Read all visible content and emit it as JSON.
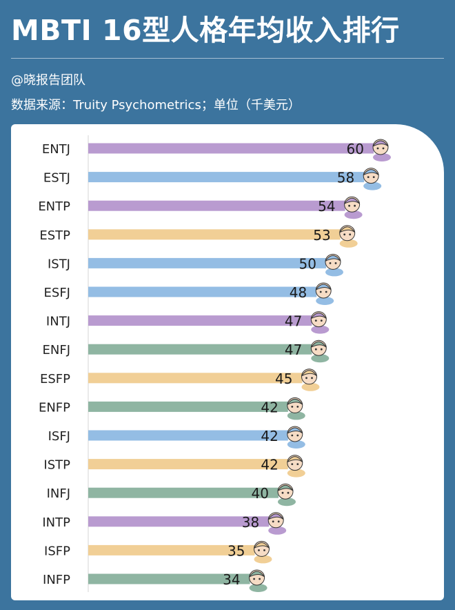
{
  "title": "MBTI 16型人格年均收入排行",
  "author": "@晓报告团队",
  "source": "数据来源：Truity Psychometrics；单位（千美元）",
  "colors": {
    "purple": "#b99bd0",
    "blue": "#94bde4",
    "orange": "#f1cf96",
    "green": "#8fb5a2",
    "background": "#3c749e"
  },
  "chart_data": {
    "type": "bar",
    "orientation": "horizontal",
    "categories": [
      "ENTJ",
      "ESTJ",
      "ENTP",
      "ESTP",
      "ISTJ",
      "ESFJ",
      "INTJ",
      "ENFJ",
      "ESFP",
      "ENFP",
      "ISFJ",
      "ISTP",
      "INFJ",
      "INTP",
      "ISFP",
      "INFP"
    ],
    "values": [
      60,
      58,
      54,
      53,
      50,
      48,
      47,
      47,
      45,
      42,
      42,
      42,
      40,
      38,
      35,
      34
    ],
    "bar_colors": [
      "purple",
      "blue",
      "purple",
      "orange",
      "blue",
      "blue",
      "purple",
      "green",
      "orange",
      "green",
      "blue",
      "orange",
      "green",
      "purple",
      "orange",
      "green"
    ],
    "xlim": [
      0,
      60
    ],
    "grid": false,
    "legend": "none"
  }
}
